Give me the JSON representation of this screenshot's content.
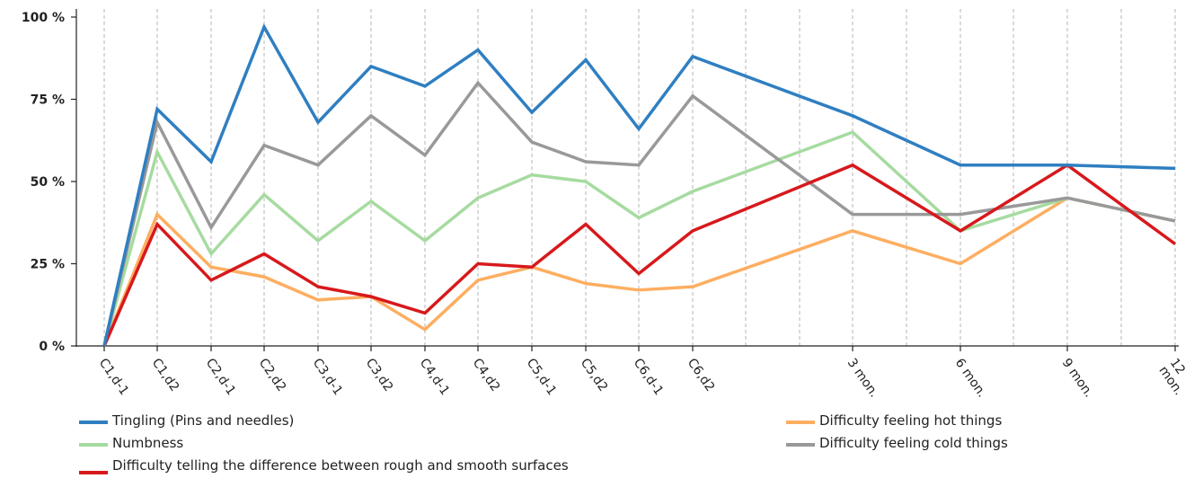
{
  "chart_data": {
    "type": "line",
    "title": "",
    "xlabel": "",
    "ylabel": "",
    "ylim": [
      0,
      100
    ],
    "yticks": [
      "0 %",
      "25 %",
      "50 %",
      "75 %",
      "100 %"
    ],
    "ytick_values": [
      0,
      25,
      50,
      75,
      100
    ],
    "grid": "vertical dashed lines at every x position",
    "legend_position": "bottom",
    "categories": [
      "C1,d-1",
      "C1,d2",
      "C2,d-1",
      "C2,d2",
      "C3,d-1",
      "C3,d2",
      "C4,d-1",
      "C4,d2",
      "C5,d-1",
      "C5,d2",
      "C6,d-1",
      "C6,d2",
      "3 mon.",
      "6 mon.",
      "9 mon.",
      "12 mon."
    ],
    "series": [
      {
        "name": "Tingling  (Pins and needles)",
        "color": "#2f7fc1",
        "values": [
          0,
          72,
          56,
          97,
          68,
          85,
          79,
          90,
          71,
          87,
          66,
          88,
          70,
          55,
          55,
          54
        ]
      },
      {
        "name": "Numbness",
        "color": "#a6dba0",
        "values": [
          0,
          59,
          28,
          46,
          32,
          44,
          32,
          45,
          52,
          50,
          39,
          47,
          65,
          35,
          45,
          38
        ]
      },
      {
        "name": "Difficulty telling the difference between rough and smooth surfaces",
        "color": "#d7191c",
        "values": [
          0,
          37,
          20,
          28,
          18,
          15,
          10,
          25,
          24,
          37,
          22,
          35,
          55,
          35,
          55,
          31
        ]
      },
      {
        "name": "Difficulty feeling hot things",
        "color": "#fdae61",
        "values": [
          0,
          40,
          24,
          21,
          14,
          15,
          5,
          20,
          24,
          19,
          17,
          18,
          35,
          25,
          45,
          38
        ]
      },
      {
        "name": "Difficulty feeling cold things",
        "color": "#999999",
        "values": [
          0,
          68,
          36,
          61,
          55,
          70,
          58,
          80,
          62,
          56,
          55,
          76,
          40,
          40,
          45,
          38
        ]
      }
    ]
  }
}
